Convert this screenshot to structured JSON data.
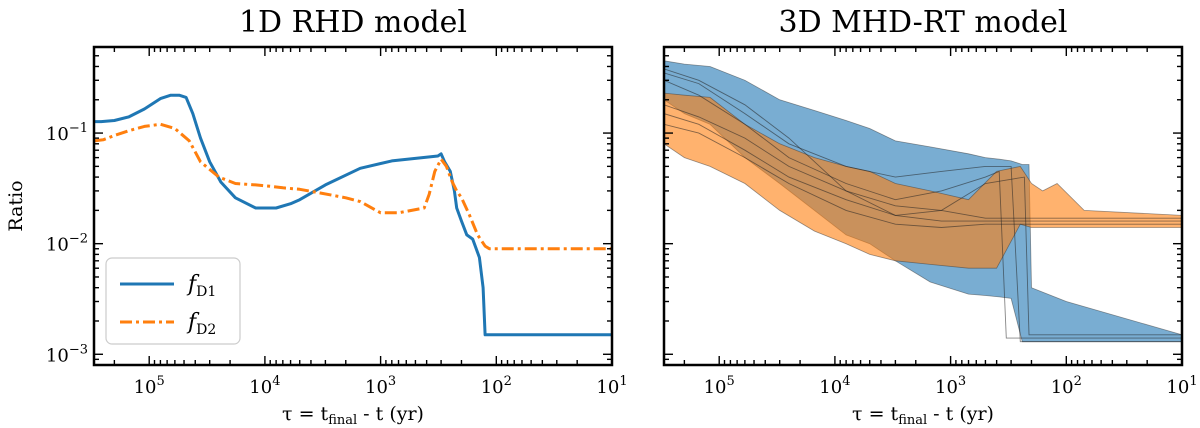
{
  "chart_data": [
    {
      "type": "line",
      "title": "1D RHD model",
      "xlabel": "τ = t_final - t (yr)",
      "ylabel": "Ratio",
      "xscale": "log",
      "yscale": "log",
      "x_reversed": true,
      "xlim": [
        300000,
        10
      ],
      "ylim": [
        0.0008,
        0.6
      ],
      "xticks": [
        {
          "value": 100000,
          "base": "10",
          "exp": "5"
        },
        {
          "value": 10000,
          "base": "10",
          "exp": "4"
        },
        {
          "value": 1000,
          "base": "10",
          "exp": "3"
        },
        {
          "value": 100,
          "base": "10",
          "exp": "2"
        },
        {
          "value": 10,
          "base": "10",
          "exp": "1"
        }
      ],
      "yticks": [
        {
          "value": 0.001,
          "base": "10",
          "exp": "−3"
        },
        {
          "value": 0.01,
          "base": "10",
          "exp": "−2"
        },
        {
          "value": 0.1,
          "base": "10",
          "exp": "−1"
        }
      ],
      "legend": {
        "position": "lower-left",
        "entries": [
          {
            "main": "f",
            "sub": "D1"
          },
          {
            "main": "f",
            "sub": "D2"
          }
        ]
      },
      "series": [
        {
          "name": "f_D1",
          "color": "#1f77b4",
          "style": "solid",
          "x": [
            300000,
            260000,
            200000,
            150000,
            110000,
            80000,
            65000,
            55000,
            48000,
            42000,
            36000,
            30000,
            24000,
            18000,
            12000,
            8000,
            6000,
            5000,
            3000,
            1500,
            800,
            500,
            320,
            300,
            280,
            250,
            230,
            220,
            200,
            180,
            160,
            140,
            130,
            125,
            120,
            10
          ],
          "y": [
            0.127,
            0.127,
            0.13,
            0.14,
            0.165,
            0.205,
            0.22,
            0.22,
            0.21,
            0.15,
            0.09,
            0.055,
            0.036,
            0.026,
            0.021,
            0.021,
            0.023,
            0.025,
            0.034,
            0.048,
            0.056,
            0.059,
            0.062,
            0.065,
            0.055,
            0.045,
            0.03,
            0.021,
            0.016,
            0.012,
            0.011,
            0.0075,
            0.004,
            0.0015,
            0.0015,
            0.0015
          ]
        },
        {
          "name": "f_D2",
          "color": "#ff7f0e",
          "style": "dashdot",
          "x": [
            300000,
            250000,
            200000,
            150000,
            110000,
            80000,
            60000,
            45000,
            36000,
            25000,
            18000,
            12000,
            9000,
            7000,
            5000,
            3500,
            2000,
            1500,
            1000,
            700,
            420,
            380,
            340,
            300,
            270,
            240,
            220,
            200,
            170,
            145,
            125,
            115,
            10
          ],
          "y": [
            0.085,
            0.087,
            0.095,
            0.105,
            0.115,
            0.12,
            0.11,
            0.085,
            0.055,
            0.04,
            0.035,
            0.034,
            0.033,
            0.032,
            0.031,
            0.029,
            0.026,
            0.024,
            0.019,
            0.019,
            0.021,
            0.028,
            0.045,
            0.058,
            0.05,
            0.036,
            0.03,
            0.026,
            0.018,
            0.012,
            0.0095,
            0.009,
            0.009
          ]
        }
      ]
    },
    {
      "type": "area",
      "title": "3D MHD-RT model",
      "xlabel": "τ = t_final - t (yr)",
      "xscale": "log",
      "yscale": "log",
      "x_reversed": true,
      "xlim": [
        300000,
        10
      ],
      "ylim": [
        0.0008,
        0.6
      ],
      "xticks": [
        {
          "value": 100000,
          "base": "10",
          "exp": "5"
        },
        {
          "value": 10000,
          "base": "10",
          "exp": "4"
        },
        {
          "value": 1000,
          "base": "10",
          "exp": "3"
        },
        {
          "value": 100,
          "base": "10",
          "exp": "2"
        },
        {
          "value": 10,
          "base": "10",
          "exp": "1"
        }
      ],
      "series": [
        {
          "name": "f_D1 range",
          "color": "#1f77b4",
          "x": [
            300000,
            200000,
            120000,
            60000,
            30000,
            15000,
            8000,
            5000,
            3000,
            1500,
            700,
            500,
            380,
            300,
            240,
            210,
            200,
            100,
            10
          ],
          "upper": [
            0.45,
            0.42,
            0.4,
            0.3,
            0.2,
            0.16,
            0.13,
            0.11,
            0.085,
            0.075,
            0.065,
            0.06,
            0.058,
            0.056,
            0.052,
            0.052,
            0.004,
            0.003,
            0.0015
          ],
          "lower": [
            0.2,
            0.15,
            0.12,
            0.06,
            0.035,
            0.02,
            0.012,
            0.01,
            0.007,
            0.0045,
            0.0035,
            0.0034,
            0.0033,
            0.0032,
            0.0013,
            0.0013,
            0.0013,
            0.0013,
            0.0013
          ]
        },
        {
          "name": "f_D2 range",
          "color": "#ff7f0e",
          "x": [
            300000,
            200000,
            120000,
            60000,
            30000,
            15000,
            8000,
            5000,
            3000,
            1500,
            700,
            400,
            250,
            200,
            160,
            120,
            70,
            10
          ],
          "upper": [
            0.23,
            0.22,
            0.21,
            0.12,
            0.08,
            0.06,
            0.05,
            0.045,
            0.035,
            0.03,
            0.025,
            0.045,
            0.05,
            0.035,
            0.03,
            0.035,
            0.02,
            0.018
          ],
          "lower": [
            0.08,
            0.06,
            0.05,
            0.035,
            0.02,
            0.013,
            0.01,
            0.008,
            0.007,
            0.0065,
            0.006,
            0.006,
            0.015,
            0.014,
            0.014,
            0.014,
            0.014,
            0.014
          ]
        }
      ],
      "lines": [
        {
          "x": [
            300000,
            150000,
            60000,
            25000,
            8000,
            3000,
            1200,
            500,
            300,
            250,
            10
          ],
          "y": [
            0.35,
            0.28,
            0.15,
            0.08,
            0.05,
            0.04,
            0.045,
            0.05,
            0.05,
            0.0013,
            0.0013
          ]
        },
        {
          "x": [
            300000,
            150000,
            60000,
            25000,
            8000,
            3000,
            1200,
            500,
            380,
            330,
            10
          ],
          "y": [
            0.3,
            0.22,
            0.12,
            0.06,
            0.035,
            0.025,
            0.03,
            0.04,
            0.045,
            0.0014,
            0.0014
          ]
        },
        {
          "x": [
            300000,
            150000,
            60000,
            25000,
            8000,
            3000,
            1200,
            500,
            230,
            210,
            10
          ],
          "y": [
            0.38,
            0.3,
            0.18,
            0.09,
            0.03,
            0.018,
            0.02,
            0.035,
            0.04,
            0.0015,
            0.0015
          ]
        },
        {
          "x": [
            300000,
            150000,
            60000,
            25000,
            8000,
            3000,
            1200,
            500,
            10
          ],
          "y": [
            0.15,
            0.12,
            0.07,
            0.04,
            0.025,
            0.018,
            0.016,
            0.016,
            0.016
          ]
        },
        {
          "x": [
            300000,
            150000,
            60000,
            25000,
            8000,
            3000,
            1200,
            500,
            10
          ],
          "y": [
            0.12,
            0.1,
            0.06,
            0.035,
            0.02,
            0.015,
            0.014,
            0.015,
            0.015
          ]
        },
        {
          "x": [
            300000,
            150000,
            60000,
            25000,
            8000,
            3000,
            1200,
            500,
            10
          ],
          "y": [
            0.18,
            0.14,
            0.09,
            0.05,
            0.03,
            0.022,
            0.02,
            0.017,
            0.017
          ]
        }
      ]
    }
  ]
}
